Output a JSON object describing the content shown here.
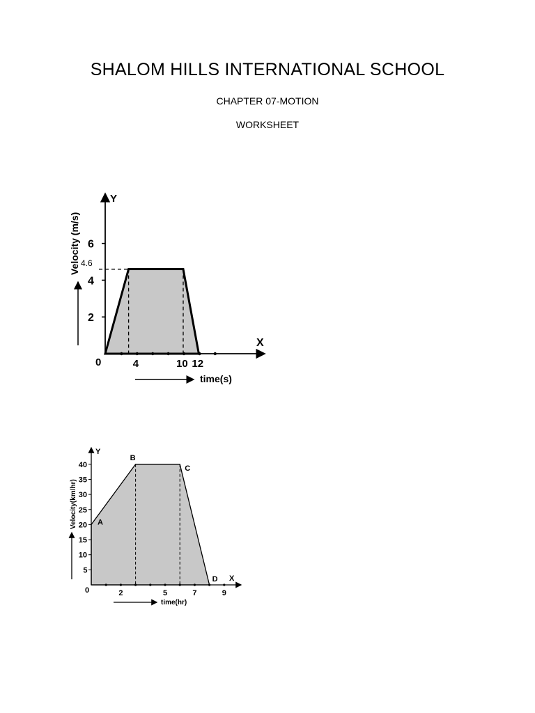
{
  "header": {
    "school": "SHALOM HILLS INTERNATIONAL SCHOOL",
    "chapter": "CHAPTER 07-MOTION",
    "sheet": "WORKSHEET"
  },
  "chart_data": [
    {
      "type": "area",
      "ylabel": "Velocity (m/s)",
      "xlabel": "time(s)",
      "y_axis_name": "Y",
      "x_axis_name": "X",
      "origin_label": "0",
      "x_ticks": [
        "4",
        "10",
        "12"
      ],
      "y_ticks": [
        "2",
        "4",
        "6"
      ],
      "marked_value": "4.6",
      "points": [
        [
          0,
          0
        ],
        [
          3,
          4.6
        ],
        [
          10,
          4.6
        ],
        [
          12,
          0
        ]
      ],
      "xlim": [
        0,
        14
      ],
      "ylim": [
        0,
        7
      ]
    },
    {
      "type": "area",
      "ylabel": "Velocity(km/hr)",
      "xlabel": "time(hr)",
      "y_axis_name": "Y",
      "x_axis_name": "X",
      "origin_label": "0",
      "x_ticks": [
        "2",
        "5",
        "7",
        "9"
      ],
      "y_ticks": [
        "5",
        "10",
        "15",
        "20",
        "25",
        "30",
        "35",
        "40"
      ],
      "point_labels": [
        "A",
        "B",
        "C",
        "D"
      ],
      "points": [
        [
          0,
          20
        ],
        [
          3,
          40
        ],
        [
          6,
          40
        ],
        [
          8,
          0
        ]
      ],
      "xlim": [
        0,
        10
      ],
      "ylim": [
        0,
        45
      ]
    }
  ]
}
